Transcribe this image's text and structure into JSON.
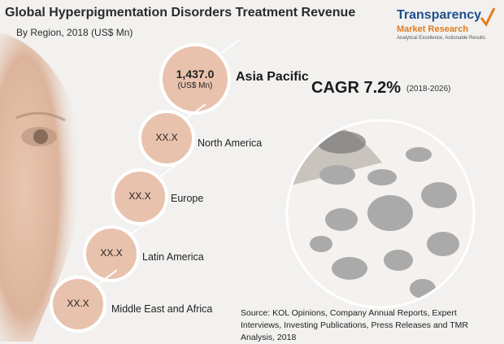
{
  "chart_data": {
    "type": "bubble-list",
    "title": "Global Hyperpigmentation Disorders Treatment Revenue",
    "subtitle": "By Region, 2018 (US$ Mn)",
    "regions": [
      {
        "name": "Asia Pacific",
        "value_label": "1,437.0",
        "unit": "(US$ Mn)"
      },
      {
        "name": "North America",
        "value_label": "XX.X"
      },
      {
        "name": "Europe",
        "value_label": "XX.X"
      },
      {
        "name": "Latin America",
        "value_label": "XX.X"
      },
      {
        "name": "Middle East and Africa",
        "value_label": "XX.X"
      }
    ],
    "cagr": "CAGR 7.2%",
    "cagr_period": "(2018-2026)"
  },
  "logo": {
    "name_line1": "Transparency",
    "name_line2": "Market Research",
    "tagline": "Analytical Excellence, Actionable Results"
  },
  "source": "Source: KOL Opinions, Company Annual Reports, Expert Interviews, Investing Publications, Press Releases and TMR Analysis, 2018",
  "colors": {
    "bubble_fill": "#e9c2ad",
    "bubble_stroke": "#ffffff",
    "title": "#2b2b2b",
    "logo_blue": "#1e4f8e",
    "logo_orange": "#e07c1d"
  }
}
